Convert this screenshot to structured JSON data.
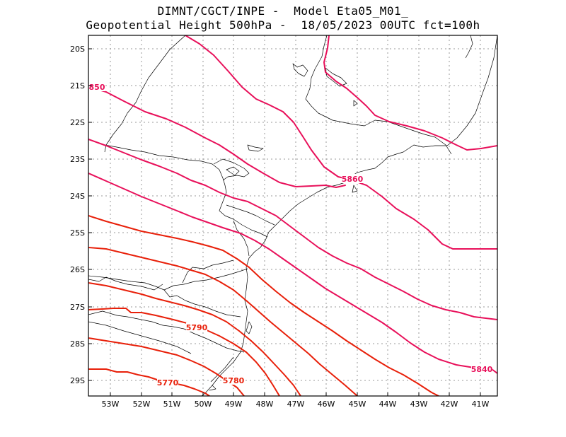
{
  "header": {
    "line1": "DIMNT/CGCT/INPE -  Model Eta05_M01_",
    "line2": "Geopotential Height 500hPa -  18/05/2023 00UTC fct=100h"
  },
  "map": {
    "lon_range": [
      -53.6,
      -40.55
    ],
    "lat_range": [
      -29.45,
      -19.55
    ],
    "y_ticks": [
      "20S",
      "21S",
      "22S",
      "23S",
      "24S",
      "25S",
      "26S",
      "27S",
      "28S",
      "29S"
    ],
    "x_ticks": [
      "53W",
      "52W",
      "51W",
      "50W",
      "49W",
      "48W",
      "47W",
      "46W",
      "45W",
      "44W",
      "43W",
      "42W",
      "41W"
    ],
    "contour_labels": {
      "c5850": "850",
      "c5860": "5860",
      "c5840": "5840",
      "c5790": "5790",
      "c5780": "5780",
      "c5770": "5770"
    },
    "colors": {
      "magenta": "#e8105a",
      "red": "#e8200a",
      "gridline": "#999999",
      "coast": "#000000"
    }
  }
}
